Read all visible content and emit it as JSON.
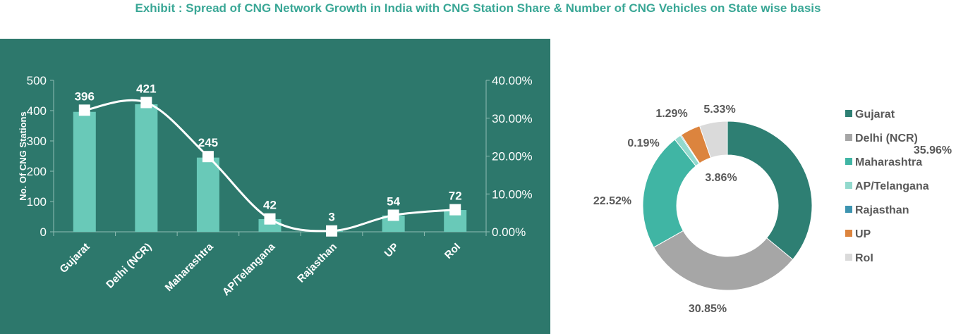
{
  "title": "Exhibit : Spread of CNG Network Growth in India with CNG Station Share & Number of CNG Vehicles on State wise basis",
  "colors": {
    "panel_bg": "#2d786c",
    "bar": "#69c9b8",
    "line": "#ffffff",
    "title": "#3aa796"
  },
  "chart_data": [
    {
      "type": "bar+line",
      "categories": [
        "Gujarat",
        "Delhi (NCR)",
        "Maharashtra",
        "AP/Telangana",
        "Rajasthan",
        "UP",
        "RoI"
      ],
      "series": [
        {
          "type": "bar",
          "axis": "left",
          "values": [
            396,
            421,
            245,
            42,
            3,
            54,
            72
          ],
          "data_labels": [
            "396",
            "421",
            "245",
            "42",
            "3",
            "54",
            "72"
          ]
        },
        {
          "type": "line",
          "axis": "right",
          "smooth": true,
          "marker": "square",
          "values": [
            32.12,
            34.14,
            19.87,
            3.41,
            0.24,
            4.38,
            5.84
          ]
        }
      ],
      "ylabel": "No. Of CNG Stations",
      "ylim": [
        0,
        500
      ],
      "yticks": [
        "0",
        "100",
        "200",
        "300",
        "400",
        "500"
      ],
      "y2lim": [
        0,
        40
      ],
      "y2ticks": [
        "0.00%",
        "10.00%",
        "20.00%",
        "30.00%",
        "40.00%"
      ],
      "grid": false
    },
    {
      "type": "pie",
      "donut": true,
      "legend_position": "right",
      "labels": [
        "Gujarat",
        "Delhi (NCR)",
        "Maharashtra",
        "AP/Telangana",
        "Rajasthan",
        "UP",
        "RoI"
      ],
      "values": [
        35.96,
        30.85,
        22.52,
        1.29,
        0.19,
        3.86,
        5.33
      ],
      "data_labels": [
        "35.96%",
        "30.85%",
        "22.52%",
        "1.29%",
        "0.19%",
        "3.86%",
        "5.33%"
      ],
      "colors": [
        "#2e7f73",
        "#a6a6a6",
        "#40b5a4",
        "#92d9cd",
        "#3d94b0",
        "#dc843e",
        "#dadada"
      ]
    }
  ]
}
